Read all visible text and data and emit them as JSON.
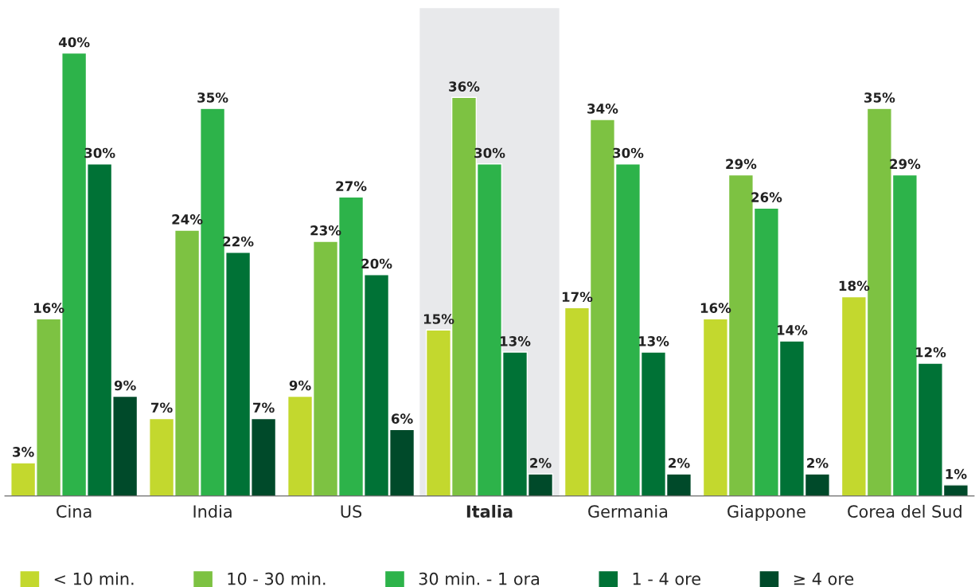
{
  "chart_data": {
    "type": "bar",
    "categories": [
      "Cina",
      "India",
      "US",
      "Italia",
      "Germania",
      "Giappone",
      "Corea del Sud"
    ],
    "series": [
      {
        "name": "< 10 min.",
        "color": "#c3d82e",
        "values": [
          3,
          7,
          9,
          15,
          17,
          16,
          18
        ],
        "value_labels": [
          "3%",
          "7%",
          "9%",
          "15%",
          "17%",
          "16%",
          "18%"
        ]
      },
      {
        "name": "10 - 30 min.",
        "color": "#7dc242",
        "values": [
          16,
          24,
          23,
          36,
          34,
          29,
          35
        ],
        "value_labels": [
          "16%",
          "24%",
          "23%",
          "36%",
          "34%",
          "29%",
          "35%"
        ]
      },
      {
        "name": "30 min. - 1 ora",
        "color": "#2db34a",
        "values": [
          40,
          35,
          27,
          30,
          30,
          26,
          29
        ],
        "value_labels": [
          "40%",
          "35%",
          "27%",
          "30%",
          "30%",
          "26%",
          "29%"
        ]
      },
      {
        "name": "1 - 4 ore",
        "color": "#007236",
        "values": [
          30,
          22,
          20,
          13,
          13,
          14,
          12
        ],
        "value_labels": [
          "30%",
          "22%",
          "20%",
          "13%",
          "13%",
          "14%",
          "12%"
        ]
      },
      {
        "name": "≥ 4 ore",
        "color": "#004a2a",
        "values": [
          9,
          7,
          6,
          2,
          2,
          2,
          1
        ],
        "value_labels": [
          "9%",
          "7%",
          "6%",
          "2%",
          "2%",
          "2%",
          "1%"
        ]
      }
    ],
    "bands": [
      {
        "axis": "x",
        "from": "Italia",
        "to": "Italia",
        "color": "#e8e9eb"
      }
    ],
    "tick_labels": "x",
    "grid": false,
    "legend": "bottom"
  }
}
